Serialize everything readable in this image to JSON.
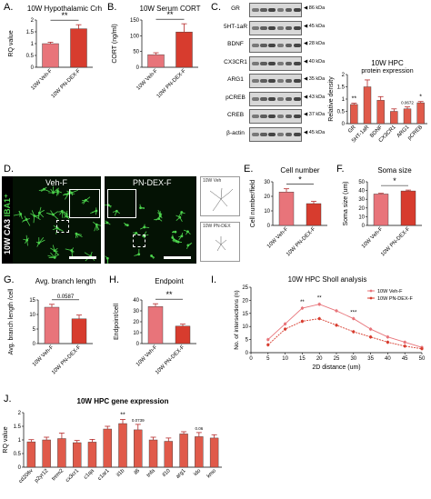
{
  "panel_labels": {
    "A": "A.",
    "B": "B.",
    "C": "C.",
    "D": "D.",
    "E": "E.",
    "F": "F.",
    "G": "G.",
    "H": "H.",
    "I": "I.",
    "J": "J."
  },
  "colors": {
    "veh": "#e8747a",
    "dex": "#d73c2e",
    "hpc": "#e05a4a",
    "err": "#b52a2a",
    "green": "#58c05a"
  },
  "blot": {
    "rows": [
      {
        "name": "GR",
        "kda": "86 kDa"
      },
      {
        "name": "5HT-1aR",
        "kda": "45 kDa"
      },
      {
        "name": "BDNF",
        "kda": "28 kDa"
      },
      {
        "name": "CX3CR1",
        "kda": "40 kDa"
      },
      {
        "name": "ARG1",
        "kda": "35 kDa"
      },
      {
        "name": "pCREB",
        "kda": "43 kDa"
      },
      {
        "name": "CREB",
        "kda": "37 kDa"
      },
      {
        "name": "β-actin",
        "kda": "45 kDa"
      }
    ]
  },
  "micro": {
    "side_label": "10W CA3",
    "side_label_green": "IBA1⁺",
    "veh_label": "Veh-F",
    "dex_label": "PN-DEX-F",
    "trace_veh": "10W Veh",
    "trace_dex": "10W PN-DEX"
  },
  "chart_data": [
    {
      "id": "A",
      "type": "bar",
      "title": "10W Hypothalamic Crh",
      "ylabel": "RQ value",
      "ylim": [
        0,
        2
      ],
      "yticks": [
        0,
        0.5,
        1,
        1.5,
        2
      ],
      "categories": [
        "10W Veh-F",
        "10W PN-DEX-F"
      ],
      "values": [
        1.0,
        1.63
      ],
      "errors": [
        0.06,
        0.17
      ],
      "sig": "**",
      "sig_value": ""
    },
    {
      "id": "B",
      "type": "bar",
      "title": "10W Serum CORT",
      "ylabel": "CORT (ng/ml)",
      "ylim": [
        0,
        150
      ],
      "yticks": [
        0,
        50,
        100,
        150
      ],
      "categories": [
        "10W Veh-F",
        "10W PN-DEX-F"
      ],
      "values": [
        40,
        112
      ],
      "errors": [
        6,
        26
      ],
      "sig": "**",
      "sig_value": ""
    },
    {
      "id": "C",
      "type": "bar",
      "title": "10W HPC",
      "subtitle": "protein expression",
      "ylabel": "Relative density",
      "ylim": [
        0,
        2
      ],
      "yticks": [
        0,
        0.5,
        1,
        1.5,
        2
      ],
      "categories": [
        "GR",
        "5HT-1aR",
        "BDNF",
        "CX3CR1",
        "ARG1",
        "pCREB"
      ],
      "values": [
        0.78,
        1.5,
        0.95,
        0.5,
        0.6,
        0.85
      ],
      "errors": [
        0.05,
        0.28,
        0.15,
        0.1,
        0.08,
        0.05
      ],
      "annotations": [
        {
          "index": 0,
          "text": "**"
        },
        {
          "index": 4,
          "text": "0.0672"
        },
        {
          "index": 5,
          "text": "*"
        }
      ]
    },
    {
      "id": "E",
      "type": "bar",
      "title": "Cell number",
      "ylabel": "Cell number/field",
      "ylim": [
        0,
        30
      ],
      "yticks": [
        0,
        10,
        20,
        30
      ],
      "categories": [
        "10W Veh-F",
        "10W PN-DEX-F"
      ],
      "values": [
        23,
        15
      ],
      "errors": [
        2.2,
        1.5
      ],
      "sig": "*",
      "sig_value": ""
    },
    {
      "id": "F",
      "type": "bar",
      "title": "Soma size",
      "ylabel": "Soma size (um)",
      "ylim": [
        0,
        50
      ],
      "yticks": [
        0,
        10,
        20,
        30,
        40,
        50
      ],
      "categories": [
        "10W Veh-F",
        "10W PN-DEX-F"
      ],
      "values": [
        36,
        39.5
      ],
      "errors": [
        0.8,
        1.0
      ],
      "sig": "*",
      "sig_value": ""
    },
    {
      "id": "G",
      "type": "bar",
      "title": "Avg. branch length",
      "ylabel": "Avg. branch length /cell",
      "ylim": [
        0,
        15
      ],
      "yticks": [
        0,
        5,
        10,
        15
      ],
      "categories": [
        "10W Veh-F",
        "10W PN-DEX-F"
      ],
      "values": [
        12.5,
        8.5
      ],
      "errors": [
        1.0,
        1.3
      ],
      "sig": "",
      "sig_value": "0.0587"
    },
    {
      "id": "H",
      "type": "bar",
      "title": "Endpoint",
      "ylabel": "Endpoint/cell",
      "ylim": [
        0,
        40
      ],
      "yticks": [
        0,
        10,
        20,
        30,
        40
      ],
      "categories": [
        "10W Veh-F",
        "10W PN-DEX-F"
      ],
      "values": [
        34,
        16
      ],
      "errors": [
        2.5,
        1.8
      ],
      "sig": "**",
      "sig_value": ""
    },
    {
      "id": "I",
      "type": "line",
      "title": "10W HPC Sholl analysis",
      "xlabel": "2D distance (um)",
      "ylabel": "No. of intersections (n)",
      "xlim": [
        0,
        50
      ],
      "ylim": [
        0,
        25
      ],
      "xticks": [
        0,
        5,
        10,
        15,
        20,
        25,
        30,
        35,
        40,
        45,
        50
      ],
      "yticks": [
        0,
        5,
        10,
        15,
        20,
        25
      ],
      "x": [
        5,
        10,
        15,
        20,
        25,
        30,
        35,
        40,
        45,
        50
      ],
      "series": [
        {
          "name": "10W Veh-F",
          "values": [
            5,
            11,
            17,
            18.5,
            16,
            13,
            9,
            6,
            4,
            2
          ]
        },
        {
          "name": "10W PN-DEX-F",
          "values": [
            3,
            9,
            12,
            13,
            10.5,
            8,
            6,
            4,
            2.5,
            1.5
          ]
        }
      ],
      "annotations": [
        {
          "x": 15,
          "text": "**"
        },
        {
          "x": 20,
          "text": "**"
        },
        {
          "x": 30,
          "text": "***"
        }
      ],
      "legend": "top-right"
    },
    {
      "id": "J",
      "type": "bar",
      "title": "10W HPC gene expression",
      "ylabel": "RQ value",
      "ylim": [
        0,
        2
      ],
      "yticks": [
        0,
        0.5,
        1,
        1.5,
        2
      ],
      "categories": [
        "cd206v",
        "p2yr12",
        "trem2",
        "cx3cr1",
        "c1qa",
        "c1ar1",
        "il1b",
        "il6",
        "tnfa",
        "il10",
        "arg1",
        "ido",
        "kmo"
      ],
      "values": [
        0.93,
        1.0,
        1.05,
        0.9,
        0.92,
        1.4,
        1.6,
        1.37,
        1.0,
        0.95,
        1.22,
        1.12,
        1.07
      ],
      "errors": [
        0.08,
        0.1,
        0.2,
        0.08,
        0.1,
        0.1,
        0.15,
        0.2,
        0.1,
        0.12,
        0.08,
        0.15,
        0.12
      ],
      "annotations": [
        {
          "index": 6,
          "text": "**"
        },
        {
          "index": 7,
          "text": "0.0739"
        },
        {
          "index": 11,
          "text": "0.06"
        }
      ]
    }
  ]
}
